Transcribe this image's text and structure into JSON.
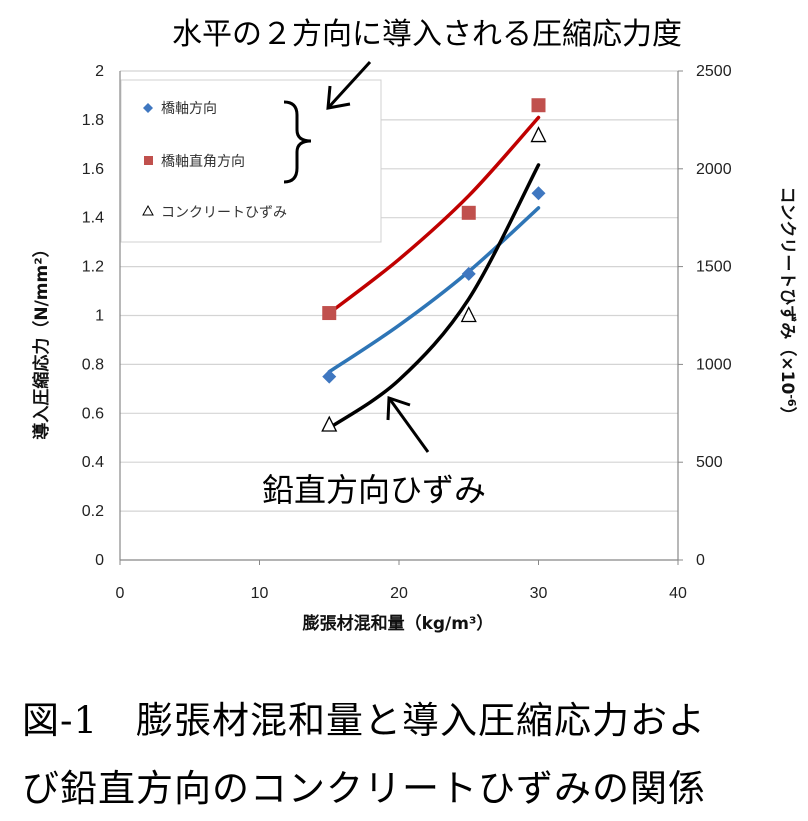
{
  "chart_data": {
    "type": "scatter",
    "x_label": "膨張材混和量（kg/m³）",
    "y_left_label": "導入圧縮応力（N/mm²）",
    "y_right_label_main": "コンクリートひずみ（×10",
    "y_right_label_exp": "-6",
    "y_right_label_close": "）",
    "xlim": [
      0,
      40
    ],
    "ylim_left": [
      0,
      2
    ],
    "ylim_right": [
      0,
      2500
    ],
    "x_ticks": [
      "0",
      "10",
      "20",
      "30",
      "40"
    ],
    "y_left_ticks": [
      "0",
      "0.2",
      "0.4",
      "0.6",
      "0.8",
      "1",
      "1.2",
      "1.4",
      "1.6",
      "1.8",
      "2"
    ],
    "y_right_ticks": [
      "0",
      "500",
      "1000",
      "1500",
      "2000",
      "2500"
    ],
    "grid": true,
    "legend_position": "top-left",
    "series": [
      {
        "name": "橋軸方向",
        "axis": "left",
        "marker": "diamond",
        "color": "#3f77c0",
        "x": [
          15,
          25,
          30
        ],
        "y": [
          0.75,
          1.17,
          1.5
        ]
      },
      {
        "name": "橋軸直角方向",
        "axis": "left",
        "marker": "square",
        "color": "#c0504d",
        "x": [
          15,
          25,
          30
        ],
        "y": [
          1.01,
          1.42,
          1.86
        ]
      },
      {
        "name": "コンクリートひずみ",
        "axis": "right",
        "marker": "triangle-open",
        "color": "#000000",
        "x": [
          15,
          25,
          30
        ],
        "y": [
          690,
          1250,
          2170
        ]
      }
    ],
    "trendlines": [
      {
        "series": "橋軸方向",
        "color": "#2e75b6",
        "x": [
          15,
          20,
          25,
          30
        ],
        "y": [
          0.77,
          0.96,
          1.18,
          1.44
        ]
      },
      {
        "series": "橋軸直角方向",
        "color": "#c00000",
        "x": [
          15,
          20,
          25,
          30
        ],
        "y": [
          1.01,
          1.23,
          1.49,
          1.81
        ]
      },
      {
        "series": "コンクリートひずみ",
        "color": "#000000",
        "x": [
          15,
          20,
          25,
          30
        ],
        "y": [
          675,
          920,
          1335,
          2020
        ]
      }
    ]
  },
  "annotations": {
    "horizontal_stress": "水平の２方向に導入される圧縮応力度",
    "vertical_strain": "鉛直方向ひずみ"
  },
  "caption": {
    "line1": "図-1　膨張材混和量と導入圧縮応力およ",
    "line2": "び鉛直方向のコンクリートひずみの関係"
  }
}
